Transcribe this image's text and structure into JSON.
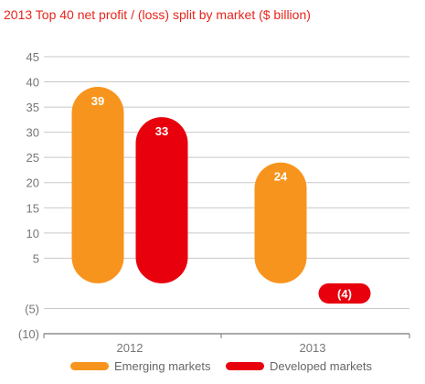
{
  "chart_data": {
    "type": "bar",
    "title": "2013 Top 40 net profit / (loss) split by market ($ billion)",
    "categories": [
      "2012",
      "2013"
    ],
    "series": [
      {
        "name": "Emerging markets",
        "values": [
          39,
          24
        ],
        "labels": [
          "39",
          "24"
        ],
        "color": "#f7941d"
      },
      {
        "name": "Developed markets",
        "values": [
          33,
          -4
        ],
        "labels": [
          "33",
          "(4)"
        ],
        "color": "#e8000d"
      }
    ],
    "ylim": [
      -10,
      45
    ],
    "yticks": [
      45,
      40,
      35,
      30,
      25,
      20,
      15,
      10,
      5,
      -5,
      -10
    ],
    "ytick_labels": [
      "45",
      "40",
      "35",
      "30",
      "25",
      "20",
      "15",
      "10",
      "5",
      "(5)",
      "(10)"
    ],
    "grid": true,
    "legend": "bottom",
    "title_color": "#e8251c"
  }
}
